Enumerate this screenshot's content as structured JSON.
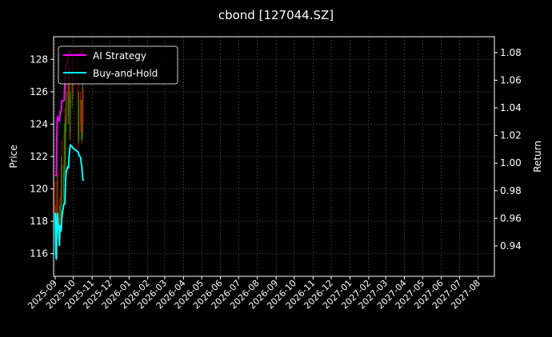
{
  "chart_data": {
    "type": "line",
    "title": "cbond [127044.SZ]",
    "ylabel_left": "Price",
    "ylabel_right": "Return",
    "ylim_left": [
      114.6,
      129.4
    ],
    "ylim_right": [
      0.918,
      1.0915
    ],
    "yticks_left": [
      116,
      118,
      120,
      122,
      124,
      126,
      128
    ],
    "yticks_right": [
      "0.94",
      "0.96",
      "0.98",
      "1.00",
      "1.02",
      "1.04",
      "1.06",
      "1.08"
    ],
    "xticks": [
      "2025-09",
      "2025-10",
      "2025-11",
      "2025-12",
      "2026-01",
      "2026-02",
      "2026-03",
      "2026-04",
      "2026-05",
      "2026-06",
      "2026-07",
      "2026-08",
      "2026-09",
      "2026-10",
      "2026-11",
      "2026-12",
      "2027-01",
      "2027-02",
      "2027-03",
      "2027-04",
      "2027-05",
      "2027-06",
      "2027-07",
      "2027-08"
    ],
    "grid": true,
    "legend_placement": "top-left",
    "colors": {
      "background": "#000000",
      "up": "#00a000",
      "down": "#e00000",
      "ai": "#ff00ff",
      "bh": "#00ffff"
    },
    "dates": [
      "2025-09-01",
      "2025-09-02",
      "2025-09-03",
      "2025-09-04",
      "2025-09-05",
      "2025-09-08",
      "2025-09-09",
      "2025-09-10",
      "2025-09-11",
      "2025-09-12",
      "2025-09-15",
      "2025-09-16",
      "2025-09-17",
      "2025-09-18",
      "2025-09-19",
      "2025-09-22",
      "2025-09-23",
      "2025-09-24",
      "2025-09-25",
      "2025-09-26",
      "2025-09-29",
      "2025-09-30",
      "2025-10-09",
      "2025-10-10",
      "2025-10-13",
      "2025-10-14",
      "2025-10-15",
      "2025-10-16",
      "2025-10-17"
    ],
    "ohlc": [
      [
        119,
        120.5,
        117.5,
        118.5
      ],
      [
        118.5,
        119,
        116,
        116.5
      ],
      [
        116.5,
        118,
        115.8,
        117.8
      ],
      [
        118,
        121,
        117.5,
        120.5
      ],
      [
        120.5,
        121,
        118.5,
        119
      ],
      [
        119,
        119.5,
        116.5,
        117
      ],
      [
        117,
        119,
        116.8,
        118.5
      ],
      [
        118.5,
        120,
        117.8,
        118
      ],
      [
        118,
        122,
        117.8,
        121.5
      ],
      [
        121.5,
        123,
        119,
        119.5
      ],
      [
        119.5,
        121.5,
        119,
        121
      ],
      [
        121,
        124,
        120.5,
        123.5
      ],
      [
        123.5,
        125,
        121,
        121.5
      ],
      [
        121.5,
        124.5,
        121,
        124
      ],
      [
        124,
        126.5,
        123.5,
        126
      ],
      [
        126,
        127.8,
        124,
        124.5
      ],
      [
        124.5,
        127.5,
        124,
        127
      ],
      [
        127,
        128,
        125,
        125.5
      ],
      [
        125.5,
        127.5,
        123,
        123.5
      ],
      [
        123.5,
        126,
        123,
        125.8
      ],
      [
        125.8,
        128,
        125,
        127.5
      ],
      [
        127.5,
        128.2,
        125.5,
        126
      ],
      [
        126,
        127.8,
        122.5,
        123
      ],
      [
        123,
        126,
        122.8,
        125.5
      ],
      [
        125.5,
        126,
        123.5,
        124
      ],
      [
        124,
        125.5,
        123,
        125
      ],
      [
        125,
        125.5,
        122.8,
        123.2
      ],
      [
        123.2,
        126.5,
        123,
        126.2
      ],
      [
        126.2,
        126.5,
        123.5,
        124
      ]
    ],
    "series": [
      {
        "name": "AI Strategy",
        "axis": "right",
        "values": [
          0.991,
          0.991,
          0.991,
          1.03,
          1.033,
          1.03,
          1.037,
          1.037,
          1.038,
          1.045,
          1.045,
          1.046,
          1.06,
          1.065,
          1.07,
          1.075,
          1.08,
          1.078,
          1.082,
          1.08,
          1.078,
          1.078,
          1.08,
          1.079,
          1.08,
          1.078,
          1.079,
          1.08,
          1.078
        ]
      },
      {
        "name": "Buy-and-Hold",
        "axis": "right",
        "values": [
          0.964,
          0.935,
          0.93,
          0.962,
          0.964,
          0.94,
          0.955,
          0.95,
          0.952,
          0.96,
          0.97,
          0.97,
          0.971,
          0.985,
          0.993,
          0.998,
          0.996,
          1.005,
          1.01,
          1.013,
          1.012,
          1.011,
          1.008,
          1.006,
          1.004,
          1.0,
          0.998,
          0.992,
          0.987
        ]
      }
    ]
  }
}
